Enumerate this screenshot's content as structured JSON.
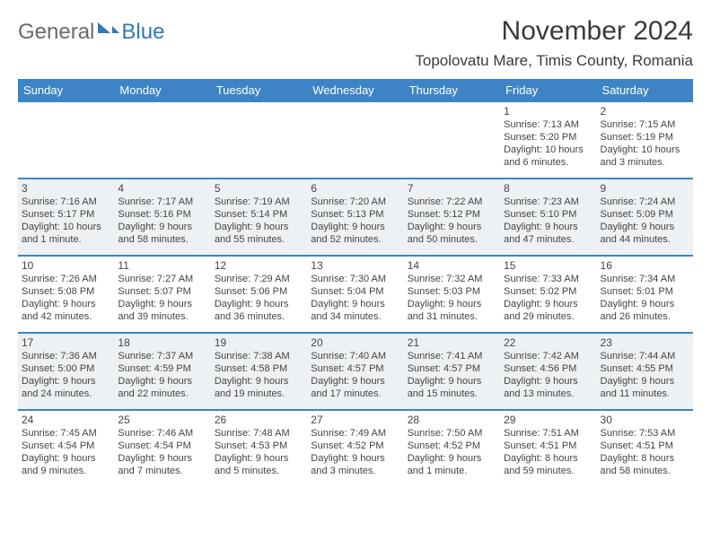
{
  "logo": {
    "textLeft": "General",
    "textRight": "Blue"
  },
  "header": {
    "title": "November 2024",
    "location": "Topolovatu Mare, Timis County, Romania"
  },
  "columns": [
    "Sunday",
    "Monday",
    "Tuesday",
    "Wednesday",
    "Thursday",
    "Friday",
    "Saturday"
  ],
  "colors": {
    "header_bg": "#3d84c6",
    "row_alt_bg": "#eef1f3",
    "logo_blue": "#2f78bc"
  },
  "weeks": [
    [
      null,
      null,
      null,
      null,
      null,
      {
        "n": "1",
        "r": "7:13 AM",
        "s": "5:20 PM",
        "d": "10 hours and 6 minutes."
      },
      {
        "n": "2",
        "r": "7:15 AM",
        "s": "5:19 PM",
        "d": "10 hours and 3 minutes."
      }
    ],
    [
      {
        "n": "3",
        "r": "7:16 AM",
        "s": "5:17 PM",
        "d": "10 hours and 1 minute."
      },
      {
        "n": "4",
        "r": "7:17 AM",
        "s": "5:16 PM",
        "d": "9 hours and 58 minutes."
      },
      {
        "n": "5",
        "r": "7:19 AM",
        "s": "5:14 PM",
        "d": "9 hours and 55 minutes."
      },
      {
        "n": "6",
        "r": "7:20 AM",
        "s": "5:13 PM",
        "d": "9 hours and 52 minutes."
      },
      {
        "n": "7",
        "r": "7:22 AM",
        "s": "5:12 PM",
        "d": "9 hours and 50 minutes."
      },
      {
        "n": "8",
        "r": "7:23 AM",
        "s": "5:10 PM",
        "d": "9 hours and 47 minutes."
      },
      {
        "n": "9",
        "r": "7:24 AM",
        "s": "5:09 PM",
        "d": "9 hours and 44 minutes."
      }
    ],
    [
      {
        "n": "10",
        "r": "7:26 AM",
        "s": "5:08 PM",
        "d": "9 hours and 42 minutes."
      },
      {
        "n": "11",
        "r": "7:27 AM",
        "s": "5:07 PM",
        "d": "9 hours and 39 minutes."
      },
      {
        "n": "12",
        "r": "7:29 AM",
        "s": "5:06 PM",
        "d": "9 hours and 36 minutes."
      },
      {
        "n": "13",
        "r": "7:30 AM",
        "s": "5:04 PM",
        "d": "9 hours and 34 minutes."
      },
      {
        "n": "14",
        "r": "7:32 AM",
        "s": "5:03 PM",
        "d": "9 hours and 31 minutes."
      },
      {
        "n": "15",
        "r": "7:33 AM",
        "s": "5:02 PM",
        "d": "9 hours and 29 minutes."
      },
      {
        "n": "16",
        "r": "7:34 AM",
        "s": "5:01 PM",
        "d": "9 hours and 26 minutes."
      }
    ],
    [
      {
        "n": "17",
        "r": "7:36 AM",
        "s": "5:00 PM",
        "d": "9 hours and 24 minutes."
      },
      {
        "n": "18",
        "r": "7:37 AM",
        "s": "4:59 PM",
        "d": "9 hours and 22 minutes."
      },
      {
        "n": "19",
        "r": "7:38 AM",
        "s": "4:58 PM",
        "d": "9 hours and 19 minutes."
      },
      {
        "n": "20",
        "r": "7:40 AM",
        "s": "4:57 PM",
        "d": "9 hours and 17 minutes."
      },
      {
        "n": "21",
        "r": "7:41 AM",
        "s": "4:57 PM",
        "d": "9 hours and 15 minutes."
      },
      {
        "n": "22",
        "r": "7:42 AM",
        "s": "4:56 PM",
        "d": "9 hours and 13 minutes."
      },
      {
        "n": "23",
        "r": "7:44 AM",
        "s": "4:55 PM",
        "d": "9 hours and 11 minutes."
      }
    ],
    [
      {
        "n": "24",
        "r": "7:45 AM",
        "s": "4:54 PM",
        "d": "9 hours and 9 minutes."
      },
      {
        "n": "25",
        "r": "7:46 AM",
        "s": "4:54 PM",
        "d": "9 hours and 7 minutes."
      },
      {
        "n": "26",
        "r": "7:48 AM",
        "s": "4:53 PM",
        "d": "9 hours and 5 minutes."
      },
      {
        "n": "27",
        "r": "7:49 AM",
        "s": "4:52 PM",
        "d": "9 hours and 3 minutes."
      },
      {
        "n": "28",
        "r": "7:50 AM",
        "s": "4:52 PM",
        "d": "9 hours and 1 minute."
      },
      {
        "n": "29",
        "r": "7:51 AM",
        "s": "4:51 PM",
        "d": "8 hours and 59 minutes."
      },
      {
        "n": "30",
        "r": "7:53 AM",
        "s": "4:51 PM",
        "d": "8 hours and 58 minutes."
      }
    ]
  ]
}
